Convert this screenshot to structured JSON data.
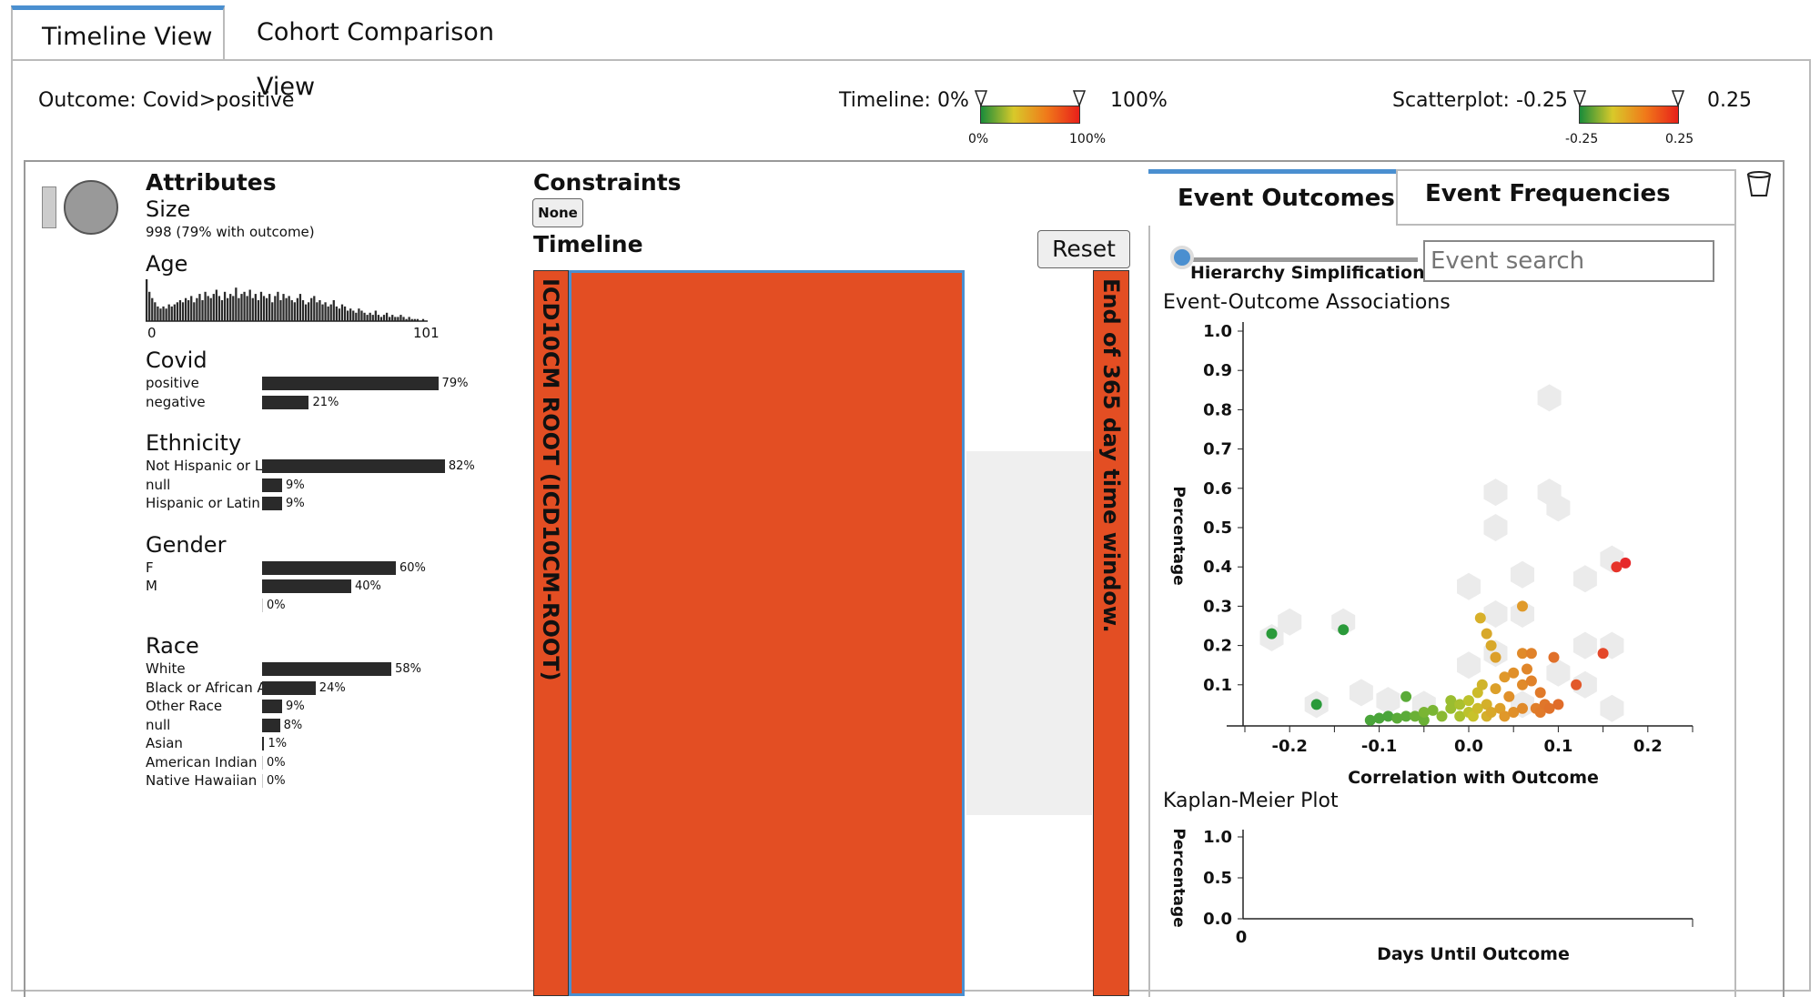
{
  "tabs": {
    "timeline": "Timeline View",
    "cohort": "Cohort Comparison View"
  },
  "header": {
    "outcome": "Outcome: Covid>positive",
    "timeline_label": "Timeline: 0%",
    "timeline_max": "100%",
    "timeline_tick_min": "0%",
    "timeline_tick_max": "100%",
    "scatter_label": "Scatterplot: -0.25",
    "scatter_max": "0.25",
    "scatter_tick_min": "-0.25",
    "scatter_tick_max": "0.25"
  },
  "attributes": {
    "title": "Attributes",
    "size_label": "Size",
    "size_value": "998 (79% with outcome)",
    "age": {
      "label": "Age",
      "min": "0",
      "max": "101"
    },
    "groups": [
      {
        "name": "Covid",
        "rows": [
          {
            "label": "positive",
            "pct": 79,
            "text": "79%"
          },
          {
            "label": "negative",
            "pct": 21,
            "text": "21%"
          }
        ]
      },
      {
        "name": "Ethnicity",
        "rows": [
          {
            "label": "Not Hispanic or L",
            "pct": 82,
            "text": "82%"
          },
          {
            "label": "null",
            "pct": 9,
            "text": "9%"
          },
          {
            "label": "Hispanic or Latin",
            "pct": 9,
            "text": "9%"
          }
        ]
      },
      {
        "name": "Gender",
        "rows": [
          {
            "label": "F",
            "pct": 60,
            "text": "60%"
          },
          {
            "label": "M",
            "pct": 40,
            "text": "40%"
          },
          {
            "label": "",
            "pct": 0,
            "text": "0%"
          }
        ]
      },
      {
        "name": "Race",
        "rows": [
          {
            "label": "White",
            "pct": 58,
            "text": "58%"
          },
          {
            "label": "Black or African A",
            "pct": 24,
            "text": "24%"
          },
          {
            "label": "Other Race",
            "pct": 9,
            "text": "9%"
          },
          {
            "label": "null",
            "pct": 8,
            "text": "8%"
          },
          {
            "label": "Asian",
            "pct": 1,
            "text": "1%"
          },
          {
            "label": "American Indian o",
            "pct": 0,
            "text": "0%"
          },
          {
            "label": "Native Hawaiian o",
            "pct": 0,
            "text": "0%"
          }
        ]
      }
    ]
  },
  "constraints": {
    "title": "Constraints",
    "none_label": "None"
  },
  "timeline": {
    "title": "Timeline",
    "reset_label": "Reset",
    "root_label": "ICD10CM ROOT (ICD10CM-ROOT)",
    "end_label": "End of 365 day time window."
  },
  "right_tabs": {
    "outcomes": "Event Outcomes",
    "frequencies": "Event Frequencies"
  },
  "controls": {
    "hierarchy_label": "Hierarchy Simplification",
    "search_placeholder": "Event search"
  },
  "scatter": {
    "title": "Event-Outcome Associations",
    "ylabel": "Percentage",
    "xlabel": "Correlation with Outcome",
    "yticks": [
      "1.0",
      "0.9",
      "0.8",
      "0.7",
      "0.6",
      "0.5",
      "0.4",
      "0.3",
      "0.2",
      "0.1"
    ],
    "xticks": [
      "-0.2",
      "-0.1",
      "0.0",
      "0.1",
      "0.2"
    ]
  },
  "km": {
    "title": "Kaplan-Meier Plot",
    "ylabel": "Percentage",
    "xlabel": "Days Until Outcome",
    "yticks": [
      "1.0",
      "0.5",
      "0.0"
    ],
    "xtick": "0"
  },
  "colors": {
    "accent": "#4a8fd0",
    "orange": "#e34e23",
    "bar": "#2a2a2a"
  },
  "chart_data": [
    {
      "type": "bar",
      "title": "Age",
      "xlim": [
        0,
        101
      ],
      "values": [
        20,
        14,
        11,
        9,
        7,
        6,
        7,
        6,
        8,
        7,
        8,
        9,
        10,
        9,
        11,
        10,
        12,
        9,
        11,
        13,
        10,
        14,
        12,
        11,
        13,
        15,
        12,
        10,
        14,
        11,
        13,
        12,
        16,
        11,
        13,
        14,
        12,
        15,
        11,
        13,
        10,
        14,
        12,
        11,
        13,
        9,
        12,
        14,
        10,
        13,
        11,
        12,
        10,
        9,
        11,
        13,
        10,
        8,
        9,
        11,
        12,
        9,
        10,
        8,
        9,
        7,
        8,
        10,
        7,
        6,
        8,
        7,
        5,
        6,
        5,
        4,
        6,
        5,
        4,
        3,
        4,
        3,
        5,
        3,
        2,
        3,
        4,
        2,
        3,
        2,
        2,
        3,
        2,
        1,
        2,
        1,
        1,
        1,
        0,
        1,
        0
      ]
    },
    {
      "type": "scatter",
      "title": "Event-Outcome Associations",
      "xlabel": "Correlation with Outcome",
      "ylabel": "Percentage",
      "xlim": [
        -0.25,
        0.25
      ],
      "ylim": [
        0,
        1.0
      ],
      "points": [
        {
          "x": -0.22,
          "y": 0.23,
          "c": "#2a9a3a"
        },
        {
          "x": -0.14,
          "y": 0.24,
          "c": "#2a9a3a"
        },
        {
          "x": -0.17,
          "y": 0.05,
          "c": "#2a9a3a"
        },
        {
          "x": -0.11,
          "y": 0.01,
          "c": "#4aa53a"
        },
        {
          "x": -0.1,
          "y": 0.015,
          "c": "#4aa53a"
        },
        {
          "x": -0.09,
          "y": 0.02,
          "c": "#4aa53a"
        },
        {
          "x": -0.08,
          "y": 0.015,
          "c": "#5aab38"
        },
        {
          "x": -0.07,
          "y": 0.02,
          "c": "#5aab38"
        },
        {
          "x": -0.07,
          "y": 0.07,
          "c": "#5aab38"
        },
        {
          "x": -0.06,
          "y": 0.02,
          "c": "#6ab036"
        },
        {
          "x": -0.05,
          "y": 0.01,
          "c": "#6ab036"
        },
        {
          "x": -0.05,
          "y": 0.03,
          "c": "#7ab534"
        },
        {
          "x": -0.04,
          "y": 0.035,
          "c": "#7ab534"
        },
        {
          "x": -0.03,
          "y": 0.02,
          "c": "#8ab932"
        },
        {
          "x": -0.02,
          "y": 0.04,
          "c": "#9abd30"
        },
        {
          "x": -0.02,
          "y": 0.06,
          "c": "#9abd30"
        },
        {
          "x": -0.01,
          "y": 0.05,
          "c": "#aac02e"
        },
        {
          "x": -0.01,
          "y": 0.02,
          "c": "#aac02e"
        },
        {
          "x": 0.0,
          "y": 0.03,
          "c": "#bcc22c"
        },
        {
          "x": 0.0,
          "y": 0.06,
          "c": "#bcc22c"
        },
        {
          "x": 0.005,
          "y": 0.02,
          "c": "#c8c22a"
        },
        {
          "x": 0.01,
          "y": 0.08,
          "c": "#ccbb2a"
        },
        {
          "x": 0.01,
          "y": 0.04,
          "c": "#ccbb2a"
        },
        {
          "x": 0.015,
          "y": 0.1,
          "c": "#d0b42a"
        },
        {
          "x": 0.02,
          "y": 0.02,
          "c": "#d4b02a"
        },
        {
          "x": 0.02,
          "y": 0.05,
          "c": "#d4b02a"
        },
        {
          "x": 0.025,
          "y": 0.03,
          "c": "#d8a82a"
        },
        {
          "x": 0.013,
          "y": 0.27,
          "c": "#d8b02a"
        },
        {
          "x": 0.02,
          "y": 0.23,
          "c": "#d8a82a"
        },
        {
          "x": 0.025,
          "y": 0.2,
          "c": "#d8a82a"
        },
        {
          "x": 0.03,
          "y": 0.17,
          "c": "#dca02a"
        },
        {
          "x": 0.03,
          "y": 0.09,
          "c": "#dca02a"
        },
        {
          "x": 0.035,
          "y": 0.04,
          "c": "#dca02a"
        },
        {
          "x": 0.04,
          "y": 0.02,
          "c": "#e0982a"
        },
        {
          "x": 0.04,
          "y": 0.12,
          "c": "#e0982a"
        },
        {
          "x": 0.045,
          "y": 0.07,
          "c": "#e0902a"
        },
        {
          "x": 0.05,
          "y": 0.03,
          "c": "#e0902a"
        },
        {
          "x": 0.05,
          "y": 0.13,
          "c": "#e0902a"
        },
        {
          "x": 0.06,
          "y": 0.18,
          "c": "#e08a2a"
        },
        {
          "x": 0.06,
          "y": 0.1,
          "c": "#e08a2a"
        },
        {
          "x": 0.06,
          "y": 0.04,
          "c": "#e08a2a"
        },
        {
          "x": 0.06,
          "y": 0.3,
          "c": "#e09a2a"
        },
        {
          "x": 0.065,
          "y": 0.14,
          "c": "#e0862a"
        },
        {
          "x": 0.07,
          "y": 0.18,
          "c": "#e0822a"
        },
        {
          "x": 0.07,
          "y": 0.11,
          "c": "#e0822a"
        },
        {
          "x": 0.075,
          "y": 0.04,
          "c": "#e07e2a"
        },
        {
          "x": 0.08,
          "y": 0.08,
          "c": "#e07a2a"
        },
        {
          "x": 0.08,
          "y": 0.03,
          "c": "#e07a2a"
        },
        {
          "x": 0.085,
          "y": 0.05,
          "c": "#e0762a"
        },
        {
          "x": 0.09,
          "y": 0.04,
          "c": "#e0722a"
        },
        {
          "x": 0.095,
          "y": 0.17,
          "c": "#e0702a"
        },
        {
          "x": 0.1,
          "y": 0.05,
          "c": "#e06c2a"
        },
        {
          "x": 0.12,
          "y": 0.1,
          "c": "#e2582a"
        },
        {
          "x": 0.15,
          "y": 0.18,
          "c": "#e4482a"
        },
        {
          "x": 0.165,
          "y": 0.4,
          "c": "#e6342a"
        },
        {
          "x": 0.175,
          "y": 0.41,
          "c": "#e6282a"
        }
      ]
    },
    {
      "type": "line",
      "title": "Kaplan-Meier Plot",
      "xlabel": "Days Until Outcome",
      "ylabel": "Percentage",
      "ylim": [
        0,
        1.0
      ]
    }
  ]
}
